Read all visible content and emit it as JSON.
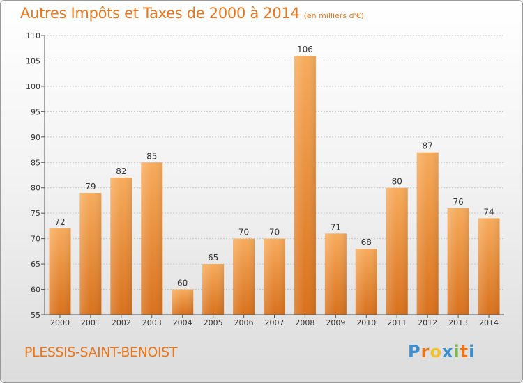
{
  "title": "Autres Impôts et Taxes de 2000 à 2014",
  "subtitle": "(en milliers d'€)",
  "commune": "PLESSIS-SAINT-BENOIST",
  "logo": {
    "text": "Proxiti",
    "letters": [
      "P",
      "r",
      "o",
      "x",
      "i",
      "t",
      "i"
    ],
    "colors": [
      "#3a8fd0",
      "#e8761a",
      "#f2c12e",
      "#3a8fd0",
      "#7ab648",
      "#e8761a",
      "#3a8fd0"
    ]
  },
  "colors": {
    "accent": "#e8761a",
    "bar_light": "#f6a95a",
    "bar_dark": "#d9741f"
  },
  "chart_data": {
    "type": "bar",
    "categories": [
      "2000",
      "2001",
      "2002",
      "2003",
      "2004",
      "2005",
      "2006",
      "2007",
      "2008",
      "2009",
      "2010",
      "2011",
      "2012",
      "2013",
      "2014"
    ],
    "values": [
      72,
      79,
      82,
      85,
      60,
      65,
      70,
      70,
      106,
      71,
      68,
      80,
      87,
      76,
      74
    ],
    "title": "Autres Impôts et Taxes de 2000 à 2014",
    "subtitle": "(en milliers d'€)",
    "xlabel": "",
    "ylabel": "",
    "ylim": [
      55,
      110
    ],
    "yticks": [
      55,
      60,
      65,
      70,
      75,
      80,
      85,
      90,
      95,
      100,
      105,
      110
    ],
    "grid": true,
    "legend": "none"
  }
}
